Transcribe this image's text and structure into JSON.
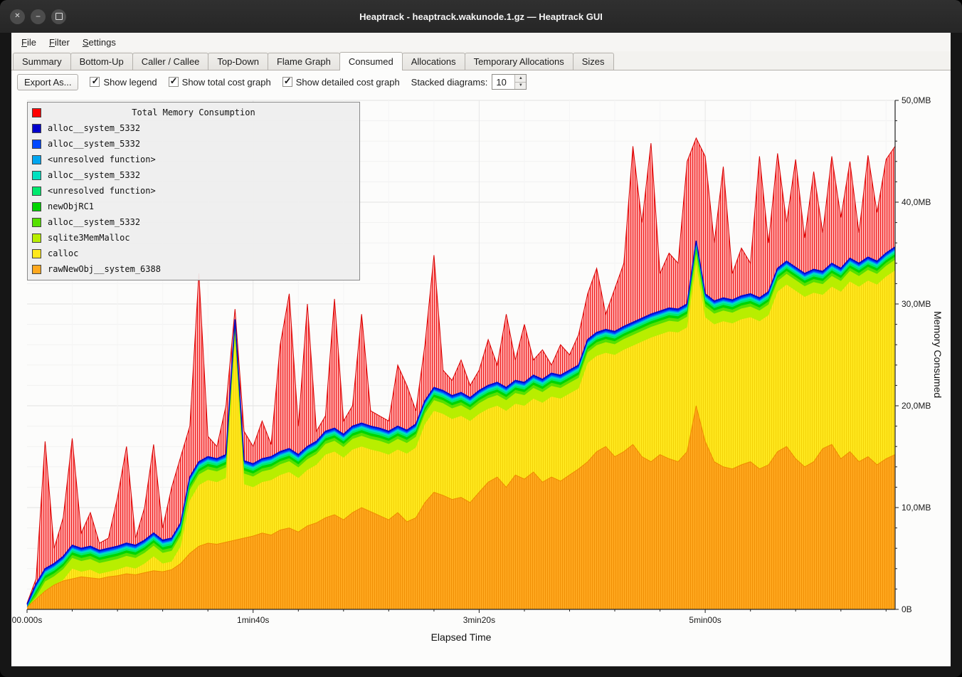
{
  "window": {
    "title": "Heaptrack - heaptrack.wakunode.1.gz — Heaptrack GUI",
    "controls": {
      "close_glyph": "✕",
      "minimize_glyph": "−"
    }
  },
  "menu": {
    "items": [
      {
        "mnemonic": "F",
        "rest": "ile"
      },
      {
        "mnemonic": "F",
        "rest": "ilter"
      },
      {
        "mnemonic": "S",
        "rest": "ettings"
      }
    ]
  },
  "tabs": {
    "active": "Consumed",
    "items": [
      "Summary",
      "Bottom-Up",
      "Caller / Callee",
      "Top-Down",
      "Flame Graph",
      "Consumed",
      "Allocations",
      "Temporary Allocations",
      "Sizes"
    ]
  },
  "toolbar": {
    "export_label": "Export As...",
    "checkboxes": [
      {
        "label": "Show legend",
        "checked": true
      },
      {
        "label": "Show total cost graph",
        "checked": true
      },
      {
        "label": "Show detailed cost graph",
        "checked": true
      }
    ],
    "stacked_label": "Stacked diagrams:",
    "stacked_value": "10",
    "spin_up_glyph": "▲",
    "spin_down_glyph": "▼"
  },
  "legend": {
    "title": "Total Memory Consumption",
    "title_color": "#ff0000",
    "entries": [
      {
        "name": "alloc__system_5332",
        "color": "#0000cc"
      },
      {
        "name": "alloc__system_5332",
        "color": "#0048ff"
      },
      {
        "name": "<unresolved function>",
        "color": "#00a6f0"
      },
      {
        "name": "alloc__system_5332",
        "color": "#00e0c0"
      },
      {
        "name": "<unresolved function>",
        "color": "#00e96e"
      },
      {
        "name": "newObjRC1",
        "color": "#00d400"
      },
      {
        "name": "alloc__system_5332",
        "color": "#55e000"
      },
      {
        "name": "sqlite3MemMalloc",
        "color": "#b8ee00"
      },
      {
        "name": "calloc",
        "color": "#ffe81c"
      },
      {
        "name": "rawNewObj__system_6388",
        "color": "#ffa81e"
      }
    ]
  },
  "chart_data": {
    "type": "area",
    "title": "Total Memory Consumption",
    "xlabel": "Elapsed Time",
    "ylabel": "Memory Consumed",
    "unit": "MB",
    "legend_position": "top-left",
    "grid": true,
    "x_ticks": [
      "00.000s",
      "1min40s",
      "3min20s",
      "5min00s"
    ],
    "x_tick_seconds": [
      0,
      100,
      200,
      300
    ],
    "y_ticks": [
      "0B",
      "10,0MB",
      "20,0MB",
      "30,0MB",
      "40,0MB",
      "50,0MB"
    ],
    "y_tick_values": [
      0,
      10,
      20,
      30,
      40,
      50
    ],
    "xlim": [
      0,
      384
    ],
    "ylim": [
      0,
      50
    ],
    "x": [
      0,
      4,
      8,
      12,
      16,
      20,
      24,
      28,
      32,
      36,
      40,
      44,
      48,
      52,
      56,
      60,
      64,
      68,
      72,
      76,
      80,
      84,
      88,
      92,
      96,
      100,
      104,
      108,
      112,
      116,
      120,
      124,
      128,
      132,
      136,
      140,
      144,
      148,
      152,
      156,
      160,
      164,
      168,
      172,
      176,
      180,
      184,
      188,
      192,
      196,
      200,
      204,
      208,
      212,
      216,
      220,
      224,
      228,
      232,
      236,
      240,
      244,
      248,
      252,
      256,
      260,
      264,
      268,
      272,
      276,
      280,
      284,
      288,
      292,
      296,
      300,
      304,
      308,
      312,
      316,
      320,
      324,
      328,
      332,
      336,
      340,
      344,
      348,
      352,
      356,
      360,
      364,
      368,
      372,
      376,
      380,
      384
    ],
    "series": [
      {
        "name": "Total Memory Consumption",
        "color": "#ff0000",
        "style": "hatched-area",
        "values": [
          0.6,
          3.0,
          16.5,
          6.0,
          9.0,
          16.8,
          7.5,
          9.5,
          6.5,
          7.0,
          11.0,
          16.0,
          7.0,
          10.0,
          16.2,
          8.0,
          12.0,
          15.0,
          18.0,
          33.0,
          17.0,
          16.0,
          20.0,
          29.5,
          17.5,
          16.0,
          18.5,
          16.2,
          26.0,
          31.0,
          18.0,
          30.0,
          17.5,
          19.0,
          30.5,
          18.5,
          20.0,
          29.0,
          19.5,
          19.0,
          18.5,
          24.0,
          22.0,
          19.5,
          26.0,
          34.8,
          23.5,
          22.5,
          24.5,
          22.0,
          23.5,
          26.5,
          24.0,
          29.0,
          24.5,
          28.0,
          24.5,
          25.5,
          24.0,
          26.0,
          25.0,
          27.0,
          31.0,
          33.5,
          29.0,
          31.5,
          34.0,
          45.5,
          38.0,
          45.8,
          33.0,
          35.0,
          34.0,
          44.0,
          46.3,
          44.5,
          36.0,
          43.5,
          33.0,
          35.5,
          34.0,
          44.5,
          36.0,
          44.8,
          38.0,
          44.2,
          36.5,
          43.0,
          37.0,
          44.5,
          38.5,
          44.0,
          37.0,
          44.6,
          39.0,
          44.2,
          45.5
        ]
      },
      {
        "name": "alloc__system_5332",
        "color": "#0000cc",
        "style": "stacked-top",
        "values": [
          0.5,
          2.5,
          4.0,
          4.5,
          5.2,
          6.3,
          6.0,
          6.2,
          5.8,
          6.0,
          6.2,
          6.5,
          6.3,
          6.8,
          7.5,
          6.8,
          7.0,
          8.5,
          13.0,
          14.5,
          15.0,
          14.8,
          15.2,
          28.5,
          14.6,
          14.3,
          14.8,
          15.0,
          15.5,
          15.8,
          15.2,
          16.0,
          16.5,
          17.5,
          17.8,
          17.2,
          18.0,
          18.3,
          18.0,
          17.8,
          17.5,
          18.0,
          17.6,
          18.2,
          20.5,
          21.8,
          21.5,
          21.0,
          21.3,
          20.8,
          21.5,
          22.0,
          22.3,
          21.8,
          22.5,
          22.3,
          23.0,
          22.6,
          23.2,
          23.0,
          23.5,
          24.0,
          26.5,
          27.2,
          27.5,
          27.3,
          27.8,
          28.2,
          28.6,
          29.0,
          29.3,
          29.6,
          29.5,
          30.0,
          36.2,
          31.0,
          30.3,
          30.6,
          30.4,
          30.8,
          31.0,
          30.6,
          31.2,
          33.5,
          34.2,
          33.6,
          33.0,
          33.4,
          33.2,
          34.0,
          33.5,
          34.5,
          34.0,
          34.6,
          34.2,
          35.0,
          35.6
        ]
      },
      {
        "name": "alloc__system_5332",
        "color": "#0048ff",
        "top_offset": 0.1
      },
      {
        "name": "<unresolved function>",
        "color": "#00a6f0",
        "top_offset": 0.25
      },
      {
        "name": "alloc__system_5332",
        "color": "#00e0c0",
        "top_offset": 0.35
      },
      {
        "name": "<unresolved function>",
        "color": "#00e96e",
        "top_offset": 0.5
      },
      {
        "name": "newObjRC1",
        "color": "#00d400",
        "top_offset": 0.7
      },
      {
        "name": "alloc__system_5332",
        "color": "#55e000",
        "top_offset": 0.95
      },
      {
        "name": "sqlite3MemMalloc",
        "color": "#b8ee00",
        "top_offset": 1.25
      },
      {
        "name": "calloc",
        "color": "#ffe81c",
        "top_offset": 2.3,
        "pattern": "yellow"
      },
      {
        "name": "rawNewObj__system_6388",
        "color": "#ffa81e",
        "pattern": "orange",
        "values": [
          0.2,
          1.0,
          1.8,
          2.4,
          2.8,
          3.0,
          3.2,
          3.1,
          3.0,
          3.2,
          3.3,
          3.5,
          3.4,
          3.6,
          3.8,
          3.7,
          3.9,
          4.5,
          5.5,
          6.2,
          6.5,
          6.4,
          6.6,
          6.8,
          7.0,
          7.2,
          7.5,
          7.3,
          7.8,
          8.0,
          7.6,
          8.2,
          8.5,
          9.0,
          9.3,
          8.8,
          9.5,
          10.0,
          9.6,
          9.2,
          8.8,
          9.5,
          8.6,
          9.0,
          10.5,
          11.5,
          11.2,
          10.8,
          11.0,
          10.5,
          11.5,
          12.5,
          13.0,
          12.0,
          13.2,
          12.8,
          13.5,
          12.5,
          13.0,
          12.6,
          13.2,
          13.8,
          14.5,
          15.5,
          16.0,
          15.0,
          15.5,
          16.2,
          15.0,
          14.5,
          15.2,
          14.8,
          14.5,
          15.5,
          20.0,
          16.5,
          14.5,
          14.0,
          13.8,
          14.2,
          14.5,
          13.8,
          14.2,
          15.5,
          16.0,
          14.8,
          14.0,
          14.5,
          15.8,
          16.2,
          14.8,
          15.5,
          14.5,
          15.0,
          14.2,
          14.8,
          15.2
        ]
      }
    ]
  }
}
